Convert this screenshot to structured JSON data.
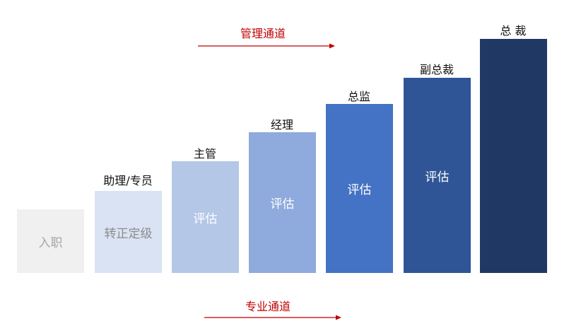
{
  "tracks": {
    "management": {
      "label": "管理通道",
      "color": "#c00000"
    },
    "professional": {
      "label": "专业通道",
      "color": "#c00000"
    }
  },
  "steps": [
    {
      "level": "",
      "inner": "入职",
      "fill": "#f0f0f0",
      "text_color": "#a6a6a6"
    },
    {
      "level": "助理/专员",
      "inner": "转正定级",
      "fill": "#dae3f3",
      "text_color": "#8c8c8c"
    },
    {
      "level": "主管",
      "inner": "评估",
      "fill": "#b4c7e7",
      "text_color": "#ffffff"
    },
    {
      "level": "经理",
      "inner": "评估",
      "fill": "#8faadc",
      "text_color": "#ffffff"
    },
    {
      "level": "总监",
      "inner": "评估",
      "fill": "#4472c4",
      "text_color": "#ffffff"
    },
    {
      "level": "副总裁",
      "inner": "评估",
      "fill": "#2f5597",
      "text_color": "#ffffff"
    },
    {
      "level": "总 裁",
      "inner": "",
      "fill": "#203864",
      "text_color": "#ffffff"
    }
  ]
}
